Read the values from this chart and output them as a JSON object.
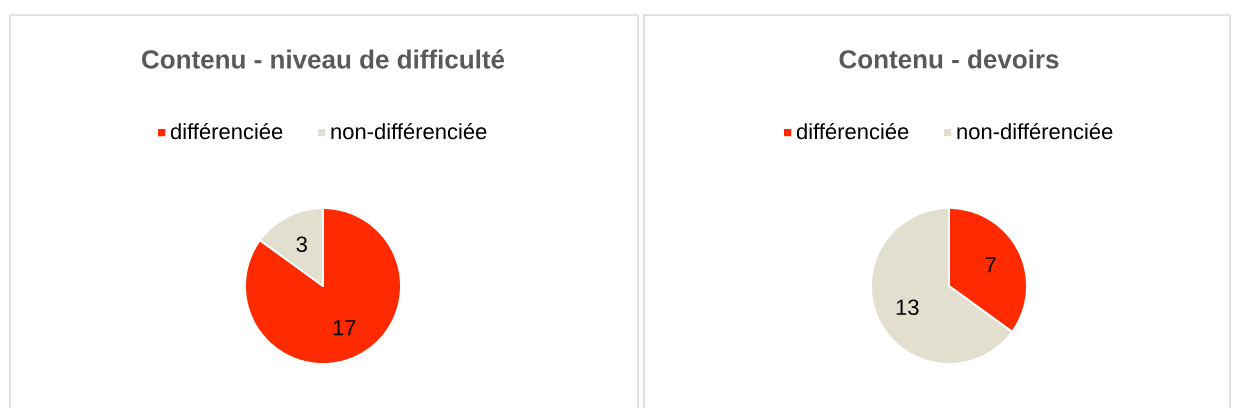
{
  "chart_data": [
    {
      "type": "pie",
      "title": "Contenu - niveau de difficulté",
      "categories": [
        "différenciée",
        "non-différenciée"
      ],
      "values": [
        17,
        3
      ],
      "colors": [
        "#ff2a00",
        "#e2dfcf"
      ],
      "legend": "top",
      "data_labels": true
    },
    {
      "type": "pie",
      "title": "Contenu - devoirs",
      "categories": [
        "différenciée",
        "non-différenciée"
      ],
      "values": [
        7,
        13
      ],
      "colors": [
        "#ff2a00",
        "#e2dfcf"
      ],
      "legend": "top",
      "data_labels": true
    }
  ]
}
